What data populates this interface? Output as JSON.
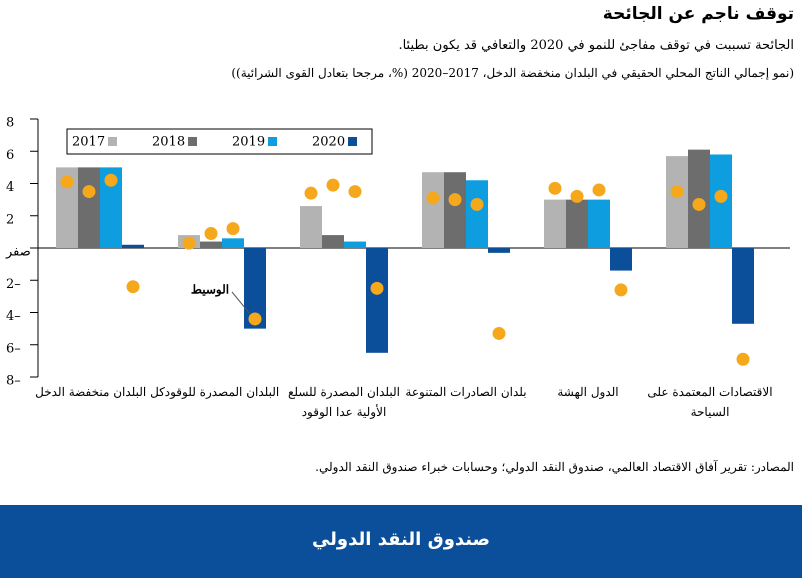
{
  "chart_data": {
    "type": "bar",
    "title": "توقف ناجم عن الجائحة",
    "subtitle": "الجائحة تسببت في توقف مفاجئ للنمو في 2020 والتعافي قد يكون بطيئا.",
    "note": "(نمو إجمالي الناتج المحلي الحقيقي في البلدان منخفضة الدخل، 2017–2020 (%، مرجحا بتعادل القوى الشرائية))",
    "source": "المصادر: تقرير آفاق الاقتصاد العالمي، صندوق النقد الدولي؛ وحسابات خبراء صندوق النقد الدولي.",
    "banner": "صندوق النقد الدولي",
    "annotation": "الوسيط",
    "categories": [
      "كل البلدان منخفضة الدخل",
      "البلدان المصدرة للوقود",
      "البلدان المصدرة للسلع الأولية عدا الوقود",
      "بلدان الصادرات المتنوعة",
      "الدول الهشة",
      "الاقتصادات المعتمدة على السياحة"
    ],
    "median_color": "#f5a81c",
    "series": [
      {
        "name": "2017",
        "color": "#b3b3b3",
        "values": [
          5.0,
          0.8,
          2.6,
          4.7,
          3.0,
          5.7
        ],
        "median_values": [
          4.1,
          0.3,
          3.4,
          3.1,
          3.7,
          3.5
        ]
      },
      {
        "name": "2018",
        "color": "#6d6d6d",
        "values": [
          5.0,
          0.4,
          0.8,
          4.7,
          3.0,
          6.1
        ],
        "median_values": [
          3.5,
          0.9,
          3.9,
          3.0,
          3.2,
          2.7
        ]
      },
      {
        "name": "2019",
        "color": "#0e9ee0",
        "values": [
          5.0,
          0.6,
          0.4,
          4.2,
          3.0,
          5.8
        ],
        "median_values": [
          4.2,
          1.2,
          3.5,
          2.7,
          3.6,
          3.2
        ]
      },
      {
        "name": "2020",
        "color": "#0b4e99",
        "values": [
          0.2,
          -5.0,
          -6.5,
          -0.3,
          -1.4,
          -4.7
        ],
        "median_values": [
          -2.4,
          -4.4,
          -2.5,
          -5.3,
          -2.6,
          -6.9
        ]
      }
    ],
    "ylim": [
      -8,
      8
    ],
    "yticks": [
      {
        "value": -8,
        "label": "8–"
      },
      {
        "value": -6,
        "label": "6–"
      },
      {
        "value": -4,
        "label": "4–"
      },
      {
        "value": -2,
        "label": "2–"
      },
      {
        "value": 0,
        "label": "صفر"
      },
      2,
      4,
      6,
      8
    ]
  }
}
